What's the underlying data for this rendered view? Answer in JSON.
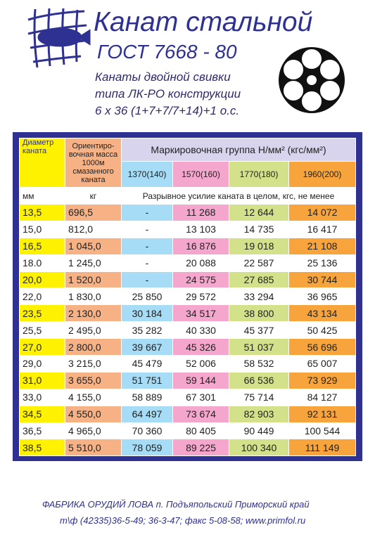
{
  "header": {
    "title": "Канат стальной",
    "standard": "ГОСТ 7668 - 80",
    "description": [
      "Канаты двойной свивки",
      "типа ЛК-РО конструкции",
      "6 x 36 (1+7+7/7+14)+1 о.с."
    ]
  },
  "table": {
    "columns": {
      "diameter": "Диаметр каната",
      "mass": "Ориентиро-вочная масса 1000м смазанного каната",
      "group": "Маркировочная группа Н/мм² (кгс/мм²)",
      "grades": [
        "1370(140)",
        "1570(160)",
        "1770(180)",
        "1960(200)"
      ]
    },
    "units": [
      "мм",
      "кг",
      "Разрывное усилие каната в целом, кгс, не менее"
    ],
    "rows": [
      [
        "13,5",
        "696,5",
        "-",
        "11 268",
        "12 644",
        "14 072"
      ],
      [
        "15,0",
        "812,0",
        "-",
        "13 103",
        "14 735",
        "16 417"
      ],
      [
        "16,5",
        "1 045,0",
        "-",
        "16 876",
        "19 018",
        "21 108"
      ],
      [
        "18.0",
        "1 245,0",
        "-",
        "20 088",
        "22 587",
        "25 136"
      ],
      [
        "20,0",
        "1 520,0",
        "-",
        "24 575",
        "27 685",
        "30 744"
      ],
      [
        "22,0",
        "1 830,0",
        "25 850",
        "29 572",
        "33 294",
        "36 965"
      ],
      [
        "23,5",
        "2 130,0",
        "30 184",
        "34 517",
        "38 800",
        "43 134"
      ],
      [
        "25,5",
        "2 495,0",
        "35 282",
        "40 330",
        "45 377",
        "50 425"
      ],
      [
        "27,0",
        "2 800,0",
        "39 667",
        "45 326",
        "51 037",
        "56 696"
      ],
      [
        "29,0",
        "3 215,0",
        "45 479",
        "52 006",
        "58 532",
        "65 007"
      ],
      [
        "31,0",
        "3 655,0",
        "51 751",
        "59 144",
        "66 536",
        "73 929"
      ],
      [
        "33,0",
        "4 155,0",
        "58 889",
        "67 301",
        "75 714",
        "84 127"
      ],
      [
        "34,5",
        "4 550,0",
        "64 497",
        "73 674",
        "82 903",
        "92 131"
      ],
      [
        "36,5",
        "4 965,0",
        "70 360",
        "80 405",
        "90 449",
        "100 544"
      ],
      [
        "38,5",
        "5 510,0",
        "78 059",
        "89 225",
        "100 340",
        "111 149"
      ]
    ]
  },
  "footer": [
    "ФАБРИКА ОРУДИЙ ЛОВА п. Подъяпольский Приморский край",
    "т\\ф (42335)36-5-49; 36-3-47; факс 5-08-58; www.primfol.ru"
  ]
}
